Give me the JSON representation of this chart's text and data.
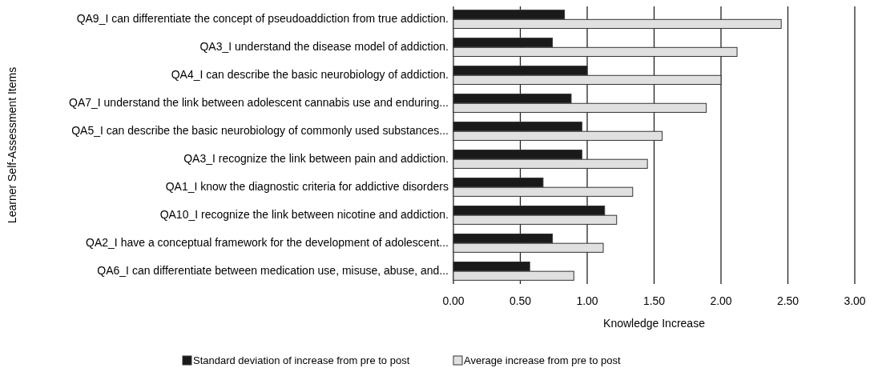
{
  "chart_data": {
    "type": "bar",
    "orientation": "horizontal",
    "xlabel": "Knowledge Increase",
    "ylabel": "Learner Self-Assessment Items",
    "categories": [
      "QA9_I can differentiate the concept of pseudoaddiction from true addiction.",
      "QA3_I understand the disease model of addiction.",
      "QA4_I can describe the basic neurobiology of addiction.",
      "QA7_I understand the link between adolescent cannabis use and enduring...",
      "QA5_I can describe the basic neurobiology of commonly used substances...",
      "QA3_I recognize the link between pain and addiction.",
      "QA1_I know the diagnostic criteria for addictive disorders",
      "QA10_I recognize the link between nicotine and addiction.",
      "QA2_I have a conceptual framework for the development of adolescent...",
      "QA6_I can differentiate between medication use, misuse, abuse, and..."
    ],
    "series": [
      {
        "name": "Standard deviation of increase from pre to post",
        "color": "#1a1a1a",
        "values": [
          0.83,
          0.74,
          1.0,
          0.88,
          0.96,
          0.96,
          0.67,
          1.13,
          0.74,
          0.57
        ]
      },
      {
        "name": "Average increase from pre to post",
        "color": "#e0e0e0",
        "values": [
          2.45,
          2.12,
          2.0,
          1.89,
          1.56,
          1.45,
          1.34,
          1.22,
          1.12,
          0.9
        ]
      }
    ],
    "xlim": [
      0,
      3
    ],
    "xticks": [
      {
        "value": 0,
        "label": "0.00"
      },
      {
        "value": 0.5,
        "label": "0.50"
      },
      {
        "value": 1,
        "label": "1.00"
      },
      {
        "value": 1.5,
        "label": "1.50"
      },
      {
        "value": 2,
        "label": "2.00"
      },
      {
        "value": 2.5,
        "label": "2.50"
      },
      {
        "value": 3,
        "label": "3.00"
      }
    ],
    "grid": "x",
    "legend": "bottom"
  }
}
